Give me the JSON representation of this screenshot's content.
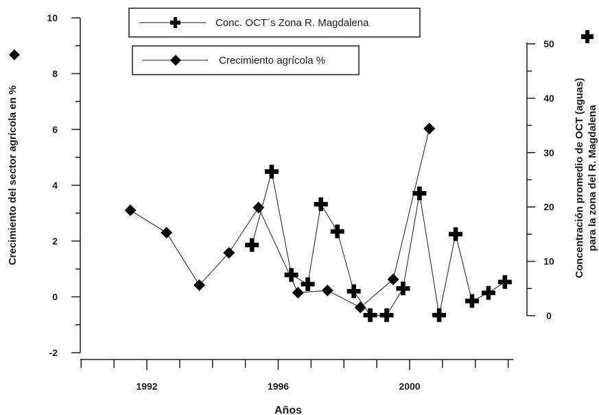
{
  "chart_data": {
    "type": "line",
    "xlabel": "Años",
    "x_ticks": [
      1992,
      1996,
      2000
    ],
    "xlim": [
      1990,
      2003
    ],
    "y_left": {
      "label": "Crecimiento del sector agrícola en %",
      "lim": [
        -2,
        10
      ],
      "ticks": [
        -2,
        0,
        2,
        4,
        6,
        8,
        10
      ]
    },
    "y_right": {
      "label_line1": "Concentración promedio de OCT (aguas)",
      "label_line2": "para la zona del  R. Magdalena",
      "lim": [
        0,
        50
      ],
      "ticks": [
        0,
        10,
        20,
        30,
        40,
        50
      ]
    },
    "series": [
      {
        "name": "Crecimiento agrícola  %",
        "axis": "left",
        "marker": "diamond",
        "x": [
          1991.5,
          1992.6,
          1993.6,
          1994.5,
          1995.4,
          1996.6,
          1997.5,
          1998.5,
          1999.5,
          2000.6
        ],
        "y": [
          3.1,
          2.3,
          0.42,
          1.58,
          3.2,
          0.15,
          0.23,
          -0.38,
          0.63,
          6.03
        ]
      },
      {
        "name": "Conc. OCT´s  Zona R. Magdalena",
        "axis": "right",
        "marker": "plus",
        "x": [
          1995.2,
          1995.8,
          1996.4,
          1996.9,
          1997.3,
          1997.8,
          1998.3,
          1998.8,
          1999.3,
          1999.8,
          2000.3,
          2000.9,
          2001.4,
          2001.9,
          2002.4,
          2002.9
        ],
        "y": [
          13.0,
          26.5,
          7.5,
          5.8,
          20.5,
          15.5,
          4.5,
          0.1,
          0.1,
          5.0,
          22.5,
          0.1,
          15.0,
          2.7,
          4.2,
          6.2
        ]
      }
    ],
    "legend": [
      {
        "label": "Conc. OCT´s  Zona R. Magdalena",
        "marker": "plus"
      },
      {
        "label": "Crecimiento agrícola  %",
        "marker": "diamond"
      }
    ],
    "left_axis_marker": "diamond",
    "right_axis_marker": "plus"
  }
}
